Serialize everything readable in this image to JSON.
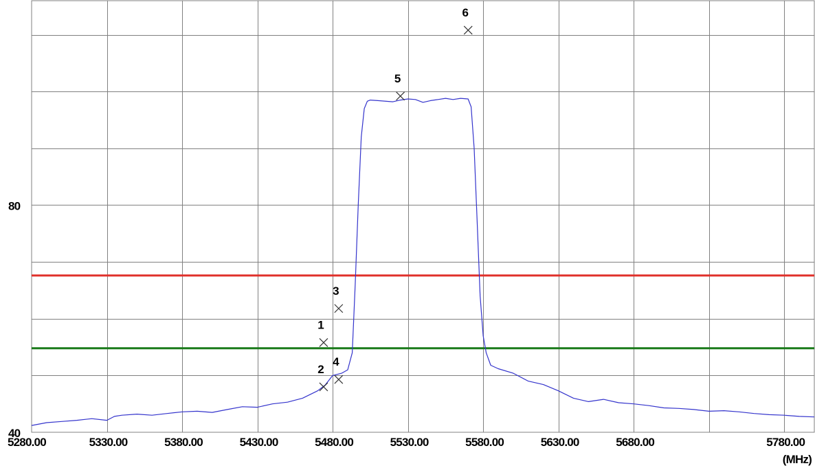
{
  "chart_data": {
    "type": "line",
    "x_unit_label": "(MHz)",
    "xlim": [
      5280,
      5800
    ],
    "ylim": [
      40,
      116
    ],
    "x_ticks": [
      "5280.00",
      "5330.00",
      "5380.00",
      "5430.00",
      "5480.00",
      "5530.00",
      "5580.00",
      "5630.00",
      "5680.00",
      "5780.00"
    ],
    "x_tick_values": [
      5280,
      5330,
      5380,
      5430,
      5480,
      5530,
      5580,
      5630,
      5680,
      5780
    ],
    "x_grid": [
      5330,
      5380,
      5430,
      5480,
      5530,
      5580,
      5630,
      5680,
      5730,
      5780
    ],
    "y_ticks": [
      "40",
      "80"
    ],
    "y_tick_values": [
      40,
      80
    ],
    "y_grid": [
      50,
      60,
      70,
      80,
      90,
      100,
      110
    ],
    "grid": true,
    "colors": {
      "trace": "#3333cc",
      "upper_limit": "#e0302a",
      "lower_limit": "#1a7a1a",
      "grid": "#808080",
      "marker": "#333333"
    },
    "horizontal_lines": [
      {
        "color": "#e0302a",
        "y": 67.6
      },
      {
        "color": "#1a7a1a",
        "y": 54.8
      }
    ],
    "series": [
      {
        "x": [
          5280,
          5290,
          5300,
          5310,
          5320,
          5330,
          5335,
          5340,
          5350,
          5360,
          5370,
          5380,
          5390,
          5400,
          5410,
          5420,
          5430,
          5440,
          5450,
          5460,
          5470,
          5475,
          5480,
          5486,
          5490,
          5493,
          5495,
          5497,
          5499,
          5501,
          5503,
          5505,
          5510,
          5520,
          5525,
          5530,
          5535,
          5540,
          5545,
          5550,
          5555,
          5560,
          5565,
          5570,
          5572,
          5574,
          5576,
          5578,
          5580,
          5582,
          5585,
          5590,
          5600,
          5610,
          5620,
          5630,
          5640,
          5650,
          5660,
          5670,
          5680,
          5690,
          5700,
          5710,
          5720,
          5730,
          5740,
          5750,
          5760,
          5770,
          5780,
          5790,
          5800
        ],
        "y": [
          41.2,
          41.7,
          41.9,
          42.1,
          42.4,
          42.1,
          42.8,
          43.0,
          43.2,
          43.0,
          43.3,
          43.6,
          43.7,
          43.5,
          44.0,
          44.5,
          44.4,
          45.0,
          45.3,
          46.0,
          47.3,
          48.3,
          50.0,
          50.4,
          51.0,
          54.0,
          66.0,
          80.0,
          92.0,
          97.0,
          98.3,
          98.5,
          98.4,
          98.2,
          98.5,
          98.7,
          98.6,
          98.1,
          98.4,
          98.6,
          98.8,
          98.6,
          98.8,
          98.7,
          97.3,
          90.0,
          77.0,
          64.0,
          57.0,
          54.0,
          51.8,
          51.2,
          50.4,
          49.0,
          48.4,
          47.3,
          46.0,
          45.4,
          45.8,
          45.2,
          45.0,
          44.7,
          44.3,
          44.2,
          44.0,
          43.7,
          43.8,
          43.6,
          43.3,
          43.1,
          43.0,
          42.8,
          42.7
        ]
      }
    ],
    "markers": [
      {
        "label": "1",
        "x": 5474,
        "y": 55.8
      },
      {
        "label": "2",
        "x": 5474,
        "y": 48.0
      },
      {
        "label": "3",
        "x": 5484,
        "y": 61.8
      },
      {
        "label": "4",
        "x": 5484,
        "y": 49.3
      },
      {
        "label": "5",
        "x": 5525,
        "y": 99.2
      },
      {
        "label": "6",
        "x": 5570,
        "y": 110.8
      }
    ]
  }
}
